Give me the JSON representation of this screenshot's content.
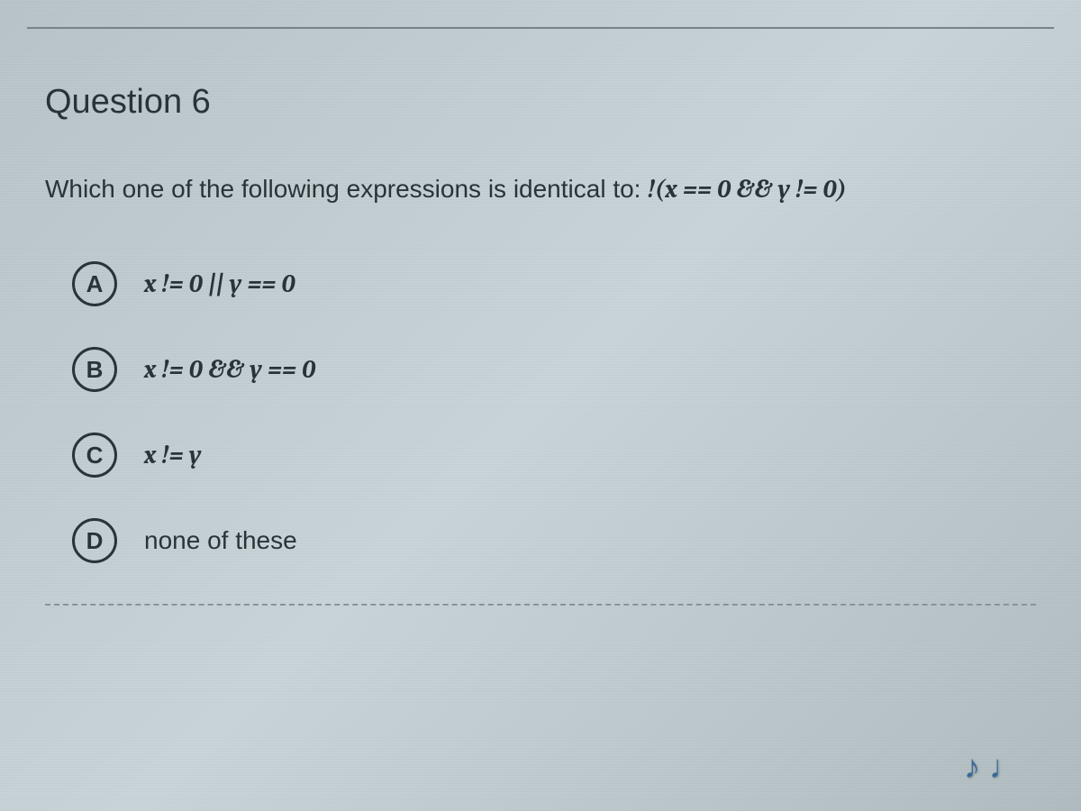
{
  "question": {
    "title": "Question 6",
    "prompt_prefix": "Which one of the following expressions is identical to: ",
    "prompt_expression": "!(x == 0 && y != 0)",
    "options": [
      {
        "letter": "A",
        "text": "x != 0 || y == 0",
        "is_expression": true
      },
      {
        "letter": "B",
        "text": "x != 0 && y == 0",
        "is_expression": true
      },
      {
        "letter": "C",
        "text": "x != y",
        "is_expression": true
      },
      {
        "letter": "D",
        "text": "none of these",
        "is_expression": false
      }
    ]
  },
  "colors": {
    "text": "#2a3438",
    "border": "#7a8488",
    "background_top": "#b8c4c8",
    "background_bottom": "#b0bcc0"
  }
}
